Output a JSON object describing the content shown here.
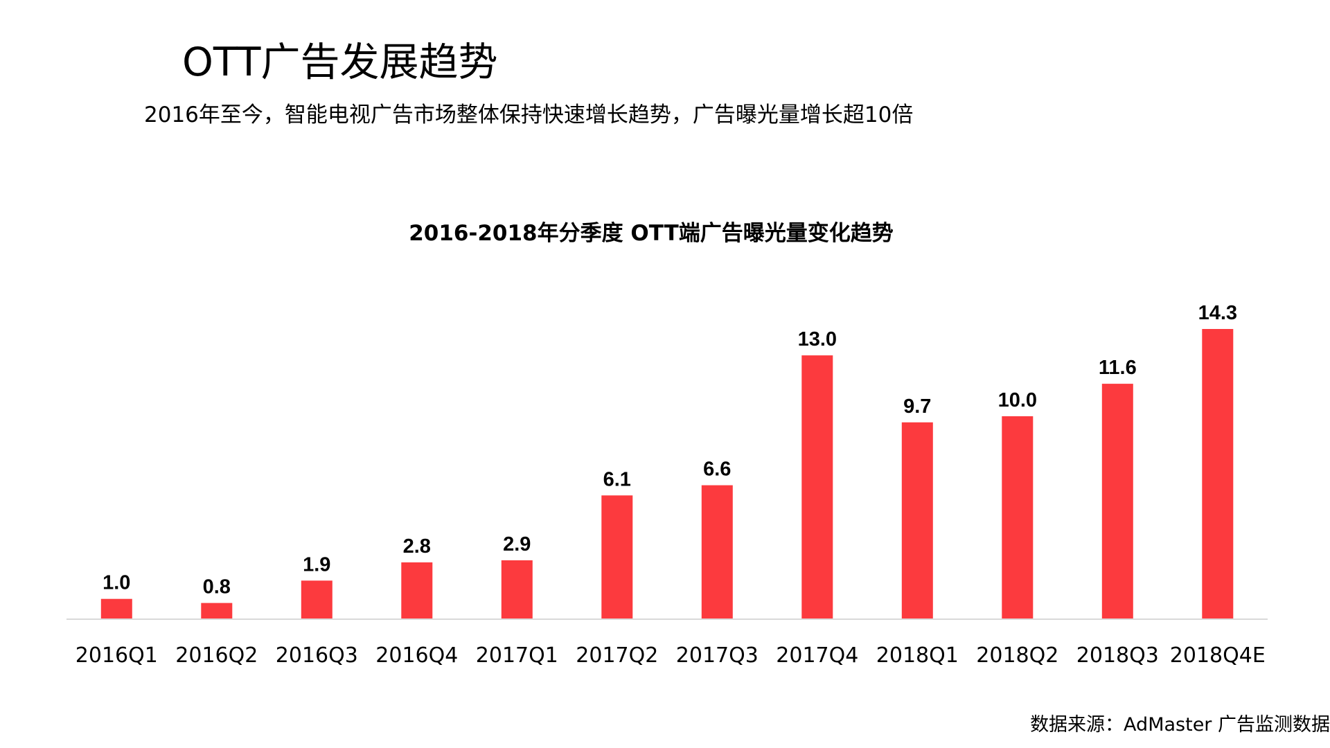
{
  "page": {
    "title": "OTT广告发展趋势",
    "subtitle": "2016年至今，智能电视广告市场整体保持快速增长趋势，广告曝光量增长超10倍",
    "source": "数据来源：AdMaster 广告监测数据"
  },
  "chart_data": {
    "type": "bar",
    "title": "2016-2018年分季度 OTT端广告曝光量变化趋势",
    "xlabel": "",
    "ylabel": "",
    "categories": [
      "2016Q1",
      "2016Q2",
      "2016Q3",
      "2016Q4",
      "2017Q1",
      "2017Q2",
      "2017Q3",
      "2017Q4",
      "2018Q1",
      "2018Q2",
      "2018Q3",
      "2018Q4E"
    ],
    "values": [
      1.0,
      0.8,
      1.9,
      2.8,
      2.9,
      6.1,
      6.6,
      13.0,
      9.7,
      10.0,
      11.6,
      14.3
    ],
    "data_labels": [
      "1.0",
      "0.8",
      "1.9",
      "2.8",
      "2.9",
      "6.1",
      "6.6",
      "13.0",
      "9.7",
      "10.0",
      "11.6",
      "14.3"
    ],
    "ylim": [
      0,
      14.3
    ],
    "grid": false,
    "legend": "none",
    "bar_color": "#fc3a3e"
  }
}
